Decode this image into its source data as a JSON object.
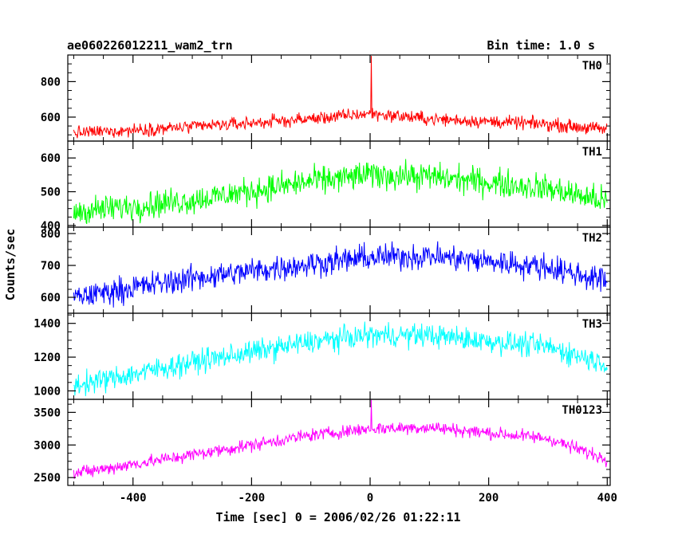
{
  "header": {
    "title": "ae060226012211_wam2_trn",
    "bin_time": "Bin time: 1.0 s"
  },
  "axes": {
    "ylabel": "Counts/sec",
    "xlabel": "Time [sec] 0 = 2006/02/26 01:22:11"
  },
  "chart_data": {
    "type": "line",
    "title": "ae060226012211_wam2_trn",
    "xlabel": "Time [sec] 0 = 2006/02/26 01:22:11",
    "ylabel": "Counts/sec",
    "xlim": [
      -510,
      405
    ],
    "x_ticks": [
      -400,
      -200,
      0,
      200,
      400
    ],
    "bin_time_s": 1.0,
    "x_start": -500,
    "x_end": 400,
    "series": [
      {
        "name": "TH0",
        "color": "#ff0000",
        "ylim": [
          465,
          950
        ],
        "y_ticks": [
          600,
          800
        ],
        "y_tick_labels": [
          "600",
          "800"
        ],
        "baseline": [
          [
            -500,
            510
          ],
          [
            -300,
            545
          ],
          [
            -100,
            590
          ],
          [
            0,
            620
          ],
          [
            100,
            590
          ],
          [
            300,
            560
          ],
          [
            400,
            530
          ]
        ],
        "noise_amplitude": 40,
        "spike": {
          "x": 2,
          "y": 945
        }
      },
      {
        "name": "TH1",
        "color": "#00ff00",
        "ylim": [
          395,
          650
        ],
        "y_ticks": [
          400,
          500,
          600
        ],
        "y_tick_labels": [
          "400",
          "500",
          "600"
        ],
        "baseline": [
          [
            -500,
            440
          ],
          [
            -300,
            475
          ],
          [
            -100,
            530
          ],
          [
            0,
            550
          ],
          [
            100,
            545
          ],
          [
            300,
            510
          ],
          [
            400,
            470
          ]
        ],
        "noise_amplitude": 45,
        "spike": null
      },
      {
        "name": "TH2",
        "color": "#0000ff",
        "ylim": [
          550,
          820
        ],
        "y_ticks": [
          600,
          700,
          800
        ],
        "y_tick_labels": [
          "600",
          "700",
          "800"
        ],
        "baseline": [
          [
            -500,
            600
          ],
          [
            -300,
            660
          ],
          [
            -100,
            705
          ],
          [
            0,
            725
          ],
          [
            100,
            730
          ],
          [
            300,
            695
          ],
          [
            400,
            650
          ]
        ],
        "noise_amplitude": 45,
        "spike": null
      },
      {
        "name": "TH3",
        "color": "#00ffff",
        "ylim": [
          950,
          1460
        ],
        "y_ticks": [
          1000,
          1200,
          1400
        ],
        "y_tick_labels": [
          "1000",
          "1200",
          "1400"
        ],
        "baseline": [
          [
            -500,
            1030
          ],
          [
            -300,
            1170
          ],
          [
            -100,
            1290
          ],
          [
            0,
            1330
          ],
          [
            100,
            1330
          ],
          [
            300,
            1260
          ],
          [
            400,
            1160
          ]
        ],
        "noise_amplitude": 75,
        "spike": null
      },
      {
        "name": "TH0123",
        "color": "#ff00ff",
        "ylim": [
          2380,
          3700
        ],
        "y_ticks": [
          2500,
          3000,
          3500
        ],
        "y_tick_labels": [
          "2500",
          "3000",
          "3500"
        ],
        "baseline": [
          [
            -500,
            2560
          ],
          [
            -300,
            2850
          ],
          [
            -100,
            3150
          ],
          [
            0,
            3250
          ],
          [
            100,
            3270
          ],
          [
            300,
            3100
          ],
          [
            400,
            2780
          ]
        ],
        "noise_amplitude": 110,
        "spike": {
          "x": 2,
          "y": 3690
        }
      }
    ]
  }
}
